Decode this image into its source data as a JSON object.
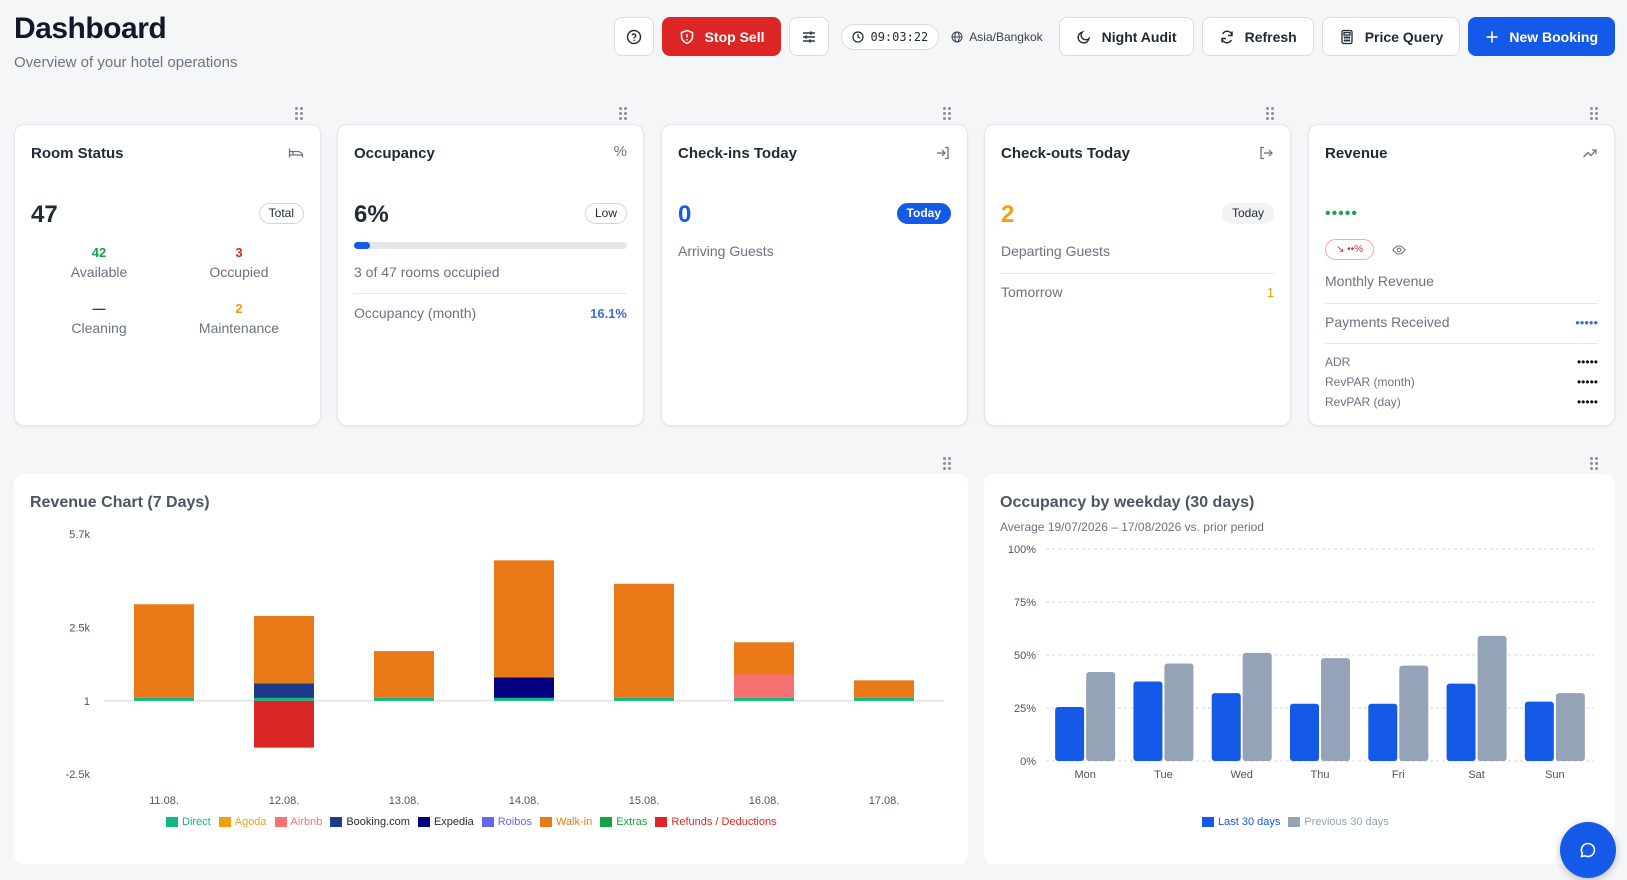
{
  "header": {
    "title": "Dashboard",
    "subtitle": "Overview of your hotel operations",
    "stop_sell_label": "Stop Sell",
    "clock": "09:03:22",
    "timezone": "Asia/Bangkok",
    "night_audit_label": "Night Audit",
    "refresh_label": "Refresh",
    "price_query_label": "Price Query",
    "new_booking_label": "New Booking"
  },
  "room_status": {
    "title": "Room Status",
    "total": "47",
    "total_label": "Total",
    "available_value": "42",
    "available_label": "Available",
    "occupied_value": "3",
    "occupied_label": "Occupied",
    "cleaning_value": "—",
    "cleaning_label": "Cleaning",
    "maintenance_value": "2",
    "maintenance_label": "Maintenance"
  },
  "occupancy": {
    "title": "Occupancy",
    "value": "6%",
    "level": "Low",
    "fill_percent": 6,
    "rooms_text": "3 of 47 rooms occupied",
    "month_label": "Occupancy (month)",
    "month_value": "16.1%"
  },
  "checkins": {
    "title": "Check-ins Today",
    "value": "0",
    "badge": "Today",
    "label": "Arriving Guests"
  },
  "checkouts": {
    "title": "Check-outs Today",
    "value": "2",
    "badge": "Today",
    "label": "Departing Guests",
    "tomorrow_label": "Tomorrow",
    "tomorrow_value": "1"
  },
  "revenue": {
    "title": "Revenue",
    "masked_value": "•••••",
    "trend": "↘ ••%",
    "monthly_label": "Monthly Revenue",
    "payments_label": "Payments Received",
    "payments_value": "•••••",
    "adr_label": "ADR",
    "adr_value": "•••••",
    "revpar_month_label": "RevPAR (month)",
    "revpar_month_value": "•••••",
    "revpar_day_label": "RevPAR (day)",
    "revpar_day_value": "•••••"
  },
  "colors": {
    "Direct": "#10b981",
    "Agoda": "#f59e0b",
    "Airbnb": "#f87171",
    "Booking.com": "#1e3a8a",
    "Expedia": "#000080",
    "Roibos": "#6366f1",
    "Walk-in": "#ea7a17",
    "Extras": "#16a34a",
    "Refunds / Deductions": "#dc2626",
    "last30": "#1559e8",
    "prev30": "#94a3b8"
  },
  "chart_data": [
    {
      "type": "bar",
      "title": "Revenue Chart (7 Days)",
      "stacked": true,
      "categories": [
        "11.08.",
        "12.08.",
        "13.08.",
        "14.08.",
        "15.08.",
        "16.08.",
        "17.08."
      ],
      "y_ticks": [
        "5.7k",
        "2.5k",
        "1",
        "-2.5k"
      ],
      "ylim": [
        -2.5,
        5.7
      ],
      "series": [
        {
          "name": "Direct",
          "values": [
            0.1,
            0.1,
            0.1,
            0.1,
            0.1,
            0.1,
            0.1
          ]
        },
        {
          "name": "Agoda",
          "values": [
            0,
            0,
            0,
            0,
            0,
            0,
            0
          ]
        },
        {
          "name": "Airbnb",
          "values": [
            0,
            0,
            0,
            0,
            0,
            0.8,
            0
          ]
        },
        {
          "name": "Booking.com",
          "values": [
            0,
            0.5,
            0,
            0,
            0,
            0,
            0
          ]
        },
        {
          "name": "Expedia",
          "values": [
            0,
            0,
            0,
            0.7,
            0,
            0,
            0
          ]
        },
        {
          "name": "Roibos",
          "values": [
            0,
            0,
            0,
            0,
            0,
            0,
            0
          ]
        },
        {
          "name": "Walk-in",
          "values": [
            3.2,
            2.3,
            1.6,
            4.0,
            3.9,
            1.1,
            0.6
          ]
        },
        {
          "name": "Extras",
          "values": [
            0,
            0,
            0,
            0,
            0,
            0,
            0
          ]
        },
        {
          "name": "Refunds / Deductions",
          "values": [
            0,
            -1.6,
            0,
            0,
            0,
            0,
            0
          ]
        }
      ],
      "legend": [
        "Direct",
        "Agoda",
        "Airbnb",
        "Booking.com",
        "Expedia",
        "Roibos",
        "Walk-in",
        "Extras",
        "Refunds / Deductions"
      ],
      "legend_position": "bottom"
    },
    {
      "type": "bar",
      "title": "Occupancy by weekday (30 days)",
      "subtitle": "Average 19/07/2026 – 17/08/2026 vs. prior period",
      "categories": [
        "Mon",
        "Tue",
        "Wed",
        "Thu",
        "Fri",
        "Sat",
        "Sun"
      ],
      "y_ticks": [
        "100%",
        "75%",
        "50%",
        "25%",
        "0%"
      ],
      "ylim": [
        0,
        100
      ],
      "grid": true,
      "series": [
        {
          "name": "Last 30 days",
          "values": [
            25.5,
            37.5,
            32,
            27,
            27,
            36.5,
            28
          ]
        },
        {
          "name": "Previous 30 days",
          "values": [
            42,
            46,
            51,
            48.5,
            45,
            59,
            32
          ]
        }
      ],
      "legend_position": "bottom"
    }
  ]
}
